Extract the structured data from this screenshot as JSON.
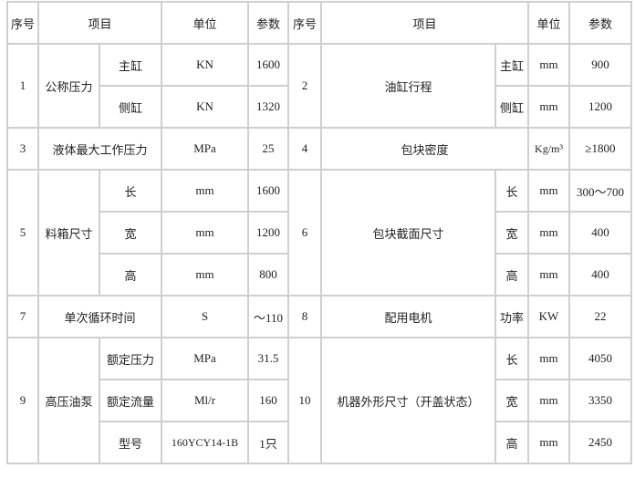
{
  "header": {
    "no": "序号",
    "item": "项目",
    "unit": "单位",
    "param": "参数"
  },
  "g1": {
    "no": "1",
    "item": "公称压力",
    "subs": [
      {
        "name": "主缸",
        "unit": "KN",
        "value": "1600"
      },
      {
        "name": "侧缸",
        "unit": "KN",
        "value": "1320"
      }
    ]
  },
  "g2": {
    "no": "2",
    "item": "油缸行程",
    "subs": [
      {
        "name": "主缸",
        "unit": "mm",
        "value": "900"
      },
      {
        "name": "侧缸",
        "unit": "mm",
        "value": "1200"
      }
    ]
  },
  "g3": {
    "no": "3",
    "item": "液体最大工作压力",
    "unit": "MPa",
    "value": "25"
  },
  "g4": {
    "no": "4",
    "item": "包块密度",
    "unit": "Kg/m³",
    "value": "≥1800"
  },
  "g5": {
    "no": "5",
    "item": "料箱尺寸",
    "subs": [
      {
        "name": "长",
        "unit": "mm",
        "value": "1600"
      },
      {
        "name": "宽",
        "unit": "mm",
        "value": "1200"
      },
      {
        "name": "高",
        "unit": "mm",
        "value": "800"
      }
    ]
  },
  "g6": {
    "no": "6",
    "item": "包块截面尺寸",
    "subs": [
      {
        "name": "长",
        "unit": "mm",
        "value": "300～700"
      },
      {
        "name": "宽",
        "unit": "mm",
        "value": "400"
      },
      {
        "name": "高",
        "unit": "mm",
        "value": "400"
      }
    ]
  },
  "g7": {
    "no": "7",
    "item": "单次循环时间",
    "unit": "S",
    "value": "～110"
  },
  "g8": {
    "no": "8",
    "item": "配用电机",
    "sub": "功率",
    "unit": "KW",
    "value": "22"
  },
  "g9": {
    "no": "9",
    "item": "高压油泵",
    "subs": [
      {
        "name": "额定压力",
        "unit": "MPa",
        "value": "31.5"
      },
      {
        "name": "额定流量",
        "unit": "Ml/r",
        "value": "160"
      },
      {
        "name": "型号",
        "unit": "160YCY14-1B",
        "value": "1只"
      }
    ]
  },
  "g10": {
    "no": "10",
    "item": "机器外形尺寸（开盖状态）",
    "subs": [
      {
        "name": "长",
        "unit": "mm",
        "value": "4050"
      },
      {
        "name": "宽",
        "unit": "mm",
        "value": "3350"
      },
      {
        "name": "高",
        "unit": "mm",
        "value": "2450"
      }
    ]
  }
}
